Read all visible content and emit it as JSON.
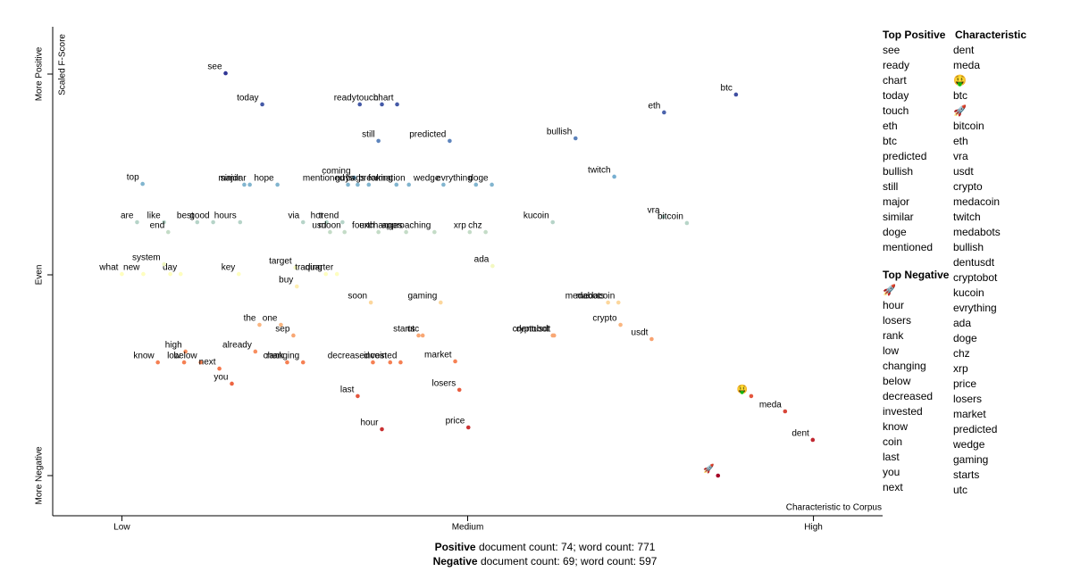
{
  "chart_data": {
    "type": "scatter",
    "x_label": "Characteristic to Corpus",
    "y_label": "Scaled F-Score",
    "xlim": [
      -0.1,
      1.1
    ],
    "ylim": [
      -1.2,
      1.2
    ],
    "xticks": [
      {
        "value": 0,
        "label": "Low"
      },
      {
        "value": 0.5,
        "label": "Medium"
      },
      {
        "value": 1,
        "label": "High"
      }
    ],
    "yticks": [
      {
        "value": -1,
        "label": "More Negative"
      },
      {
        "value": 0,
        "label": "Even"
      },
      {
        "value": 1,
        "label": "More Positive"
      }
    ],
    "colormap": [
      "#a50026",
      "#f46d43",
      "#ffffbf",
      "#74add1",
      "#313695"
    ],
    "terms": [
      "see",
      "today",
      "ready",
      "touch",
      "chart",
      "btc",
      "eth",
      "still",
      "predicted",
      "bullish",
      "twitch",
      "top",
      "major",
      "similar",
      "hope",
      "coming",
      "mentioned",
      "guys",
      "bags",
      "breaking",
      "formation",
      "wedge",
      "evrything",
      "doge",
      "are",
      "like",
      "best",
      "good",
      "hours",
      "via",
      "hot",
      "trend",
      "kucoin",
      "vra",
      "bitcoin",
      "end",
      "usd",
      "moon",
      "fourth",
      "exchanges",
      "approaching",
      "xrp",
      "chz",
      "what",
      "new",
      null,
      "day",
      "system",
      "key",
      "target",
      "buy",
      "trading",
      "quarter",
      "ada",
      "soon",
      "gaming",
      "medabots",
      "medacoin",
      "crypto",
      "usdt",
      "cryptobot",
      "dentusdt",
      "the",
      "one",
      "sep",
      "already",
      "rank",
      "changing",
      "high",
      "low",
      "know",
      "below",
      "next",
      "you",
      "starts",
      "utc",
      "decreased",
      "coin",
      "invested",
      "market",
      "losers",
      "last",
      "hour",
      "price",
      "🤑",
      "meda",
      "dent",
      "🚀"
    ],
    "x": [
      0.15,
      0.203,
      0.344,
      0.376,
      0.398,
      0.888,
      0.784,
      0.371,
      0.474,
      0.656,
      0.712,
      0.03,
      0.177,
      0.185,
      0.225,
      0.336,
      0.327,
      0.341,
      0.357,
      0.397,
      0.415,
      0.465,
      0.512,
      0.535,
      0.022,
      0.061,
      0.109,
      0.132,
      0.171,
      0.262,
      0.296,
      0.319,
      0.623,
      0.783,
      0.817,
      0.067,
      0.301,
      0.322,
      0.371,
      0.411,
      0.452,
      0.503,
      0.526,
      0.0,
      0.031,
      0.07,
      0.085,
      0.061,
      0.169,
      0.251,
      0.253,
      0.295,
      0.311,
      0.536,
      0.36,
      0.461,
      0.703,
      0.718,
      0.721,
      0.766,
      0.623,
      0.625,
      0.199,
      0.23,
      0.248,
      0.193,
      0.239,
      0.262,
      0.092,
      0.09,
      0.052,
      0.114,
      0.141,
      0.159,
      0.429,
      0.435,
      0.363,
      0.388,
      0.403,
      0.482,
      0.488,
      0.341,
      0.376,
      0.501,
      0.91,
      0.959,
      0.999,
      0.862
    ],
    "y": [
      1.004,
      0.849,
      0.849,
      0.849,
      0.849,
      0.898,
      0.809,
      0.667,
      0.667,
      0.68,
      0.489,
      0.453,
      0.449,
      0.449,
      0.449,
      0.484,
      0.449,
      0.449,
      0.449,
      0.449,
      0.449,
      0.449,
      0.449,
      0.449,
      0.262,
      0.262,
      0.262,
      0.262,
      0.262,
      0.262,
      0.262,
      0.262,
      0.262,
      0.289,
      0.258,
      0.213,
      0.213,
      0.213,
      0.213,
      0.213,
      0.213,
      0.213,
      0.213,
      0.004,
      0.004,
      0.004,
      0.004,
      0.053,
      0.004,
      0.036,
      -0.058,
      0.004,
      0.004,
      0.044,
      -0.138,
      -0.138,
      -0.138,
      -0.138,
      -0.249,
      -0.32,
      -0.302,
      -0.302,
      -0.249,
      -0.249,
      -0.302,
      -0.382,
      -0.436,
      -0.436,
      -0.382,
      -0.436,
      -0.436,
      -0.436,
      -0.467,
      -0.542,
      -0.302,
      -0.302,
      -0.436,
      -0.436,
      -0.436,
      -0.431,
      -0.573,
      -0.604,
      -0.769,
      -0.76,
      -0.604,
      -0.68,
      -0.822,
      -1.0
    ]
  },
  "top_positive": {
    "title": "Top Positive",
    "items": [
      "see",
      "ready",
      "chart",
      "today",
      "touch",
      "eth",
      "btc",
      "predicted",
      "bullish",
      "still",
      "major",
      "similar",
      "doge",
      "mentioned"
    ]
  },
  "top_negative": {
    "title": "Top Negative",
    "items": [
      "🚀",
      "hour",
      "losers",
      "rank",
      "low",
      "changing",
      "below",
      "decreased",
      "invested",
      "know",
      "coin",
      "last",
      "you",
      "next"
    ]
  },
  "characteristic": {
    "title": "Characteristic",
    "items": [
      "dent",
      "meda",
      "🤑",
      "btc",
      "🚀",
      "bitcoin",
      "eth",
      "vra",
      "usdt",
      "crypto",
      "medacoin",
      "twitch",
      "medabots",
      "bullish",
      "dentusdt",
      "cryptobot",
      "kucoin",
      "evrything",
      "ada",
      "doge",
      "chz",
      "xrp",
      "price",
      "losers",
      "market",
      "predicted",
      "wedge",
      "gaming",
      "starts",
      "utc"
    ]
  },
  "footer": [
    {
      "label": "Positive",
      "text": "document count: 74; word count: 771"
    },
    {
      "label": "Negative",
      "text": "document count: 69; word count: 597"
    }
  ]
}
